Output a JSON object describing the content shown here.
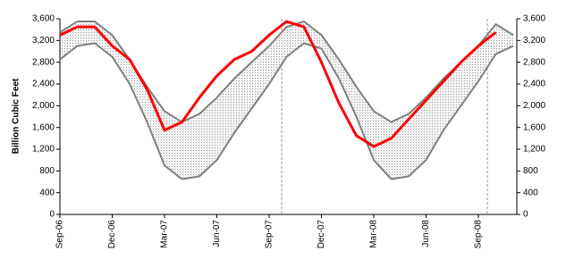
{
  "chart_data": {
    "type": "line",
    "y_label": "Billion Cubic Feet",
    "categories": [
      "Sep-06",
      null,
      null,
      "Dec-06",
      null,
      null,
      "Mar-07",
      null,
      null,
      "Jun-07",
      null,
      null,
      "Sep-07",
      null,
      null,
      "Dec-07",
      null,
      null,
      "Mar-08",
      null,
      null,
      "Jun-08",
      null,
      null,
      "Sep-08",
      null,
      null
    ],
    "series": [
      {
        "color": "#808080",
        "values": [
          3350,
          3550,
          3550,
          3300,
          2850,
          2350,
          1900,
          1700,
          1850,
          2150,
          2500,
          2800,
          3100,
          3450,
          3550,
          3300,
          2850,
          2350,
          1900,
          1700,
          1850,
          2150,
          2500,
          2800,
          3100,
          3500,
          3300
        ]
      },
      {
        "color": "#808080",
        "values": [
          2850,
          3100,
          3150,
          2900,
          2400,
          1700,
          900,
          650,
          700,
          1000,
          1500,
          1950,
          2400,
          2900,
          3150,
          3050,
          2500,
          1800,
          1000,
          650,
          700,
          1000,
          1550,
          2000,
          2450,
          2950,
          3100
        ]
      },
      {
        "color": "#ff0000",
        "values": [
          3300,
          3450,
          3450,
          3100,
          2850,
          2300,
          1550,
          1700,
          2150,
          2550,
          2850,
          3000,
          3300,
          3550,
          3450,
          2800,
          2050,
          1450,
          1250,
          1400,
          1750,
          2100,
          2450,
          2800,
          3100,
          3350,
          null
        ]
      }
    ],
    "band": true,
    "ylim": [
      0,
      3600
    ],
    "yticks": [
      0,
      400,
      800,
      {
        "value": 1200,
        "label": "1,200"
      },
      {
        "value": 1600,
        "label": "1,600"
      },
      {
        "value": 2000,
        "label": "2,000"
      },
      {
        "value": 2400,
        "label": "2,400"
      },
      {
        "value": 2800,
        "label": "2,800"
      },
      {
        "value": 3200,
        "label": "3,200"
      },
      {
        "value": 3600,
        "label": "3,600"
      }
    ],
    "y2lim": [
      0,
      3600
    ],
    "y2ticks": [
      0,
      400,
      800,
      {
        "value": 1200,
        "label": "1,200"
      },
      {
        "value": 1600,
        "label": "1,600"
      },
      {
        "value": 2000,
        "label": "2,000"
      },
      {
        "value": 2400,
        "label": "2,400"
      },
      {
        "value": 2800,
        "label": "2,800"
      },
      {
        "value": 3200,
        "label": "3,200"
      },
      {
        "value": 3600,
        "label": "3,600"
      }
    ]
  }
}
